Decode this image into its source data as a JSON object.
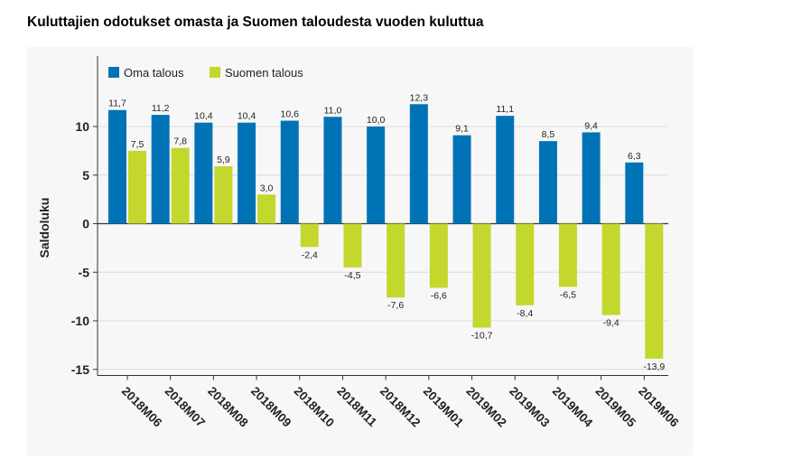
{
  "page": {
    "title": "Kuluttajien odotukset omasta ja Suomen taloudesta vuoden kuluttua"
  },
  "chart_data": {
    "type": "bar",
    "title": "Kuluttajien odotukset omasta ja Suomen taloudesta vuoden kuluttua",
    "xlabel": "",
    "ylabel": "Saldoluku",
    "ylim": [
      -16,
      17
    ],
    "yticks": [
      -15,
      -10,
      -5,
      0,
      5,
      10
    ],
    "ytick_labels": [
      "-15",
      "-10",
      "-5",
      "0",
      "5",
      "10"
    ],
    "grid": true,
    "legend_position": "top-left",
    "categories": [
      "2018M06",
      "2018M07",
      "2018M08",
      "2018M09",
      "2018M10",
      "2018M11",
      "2018M12",
      "2019M01",
      "2019M02",
      "2019M03",
      "2019M04",
      "2019M05",
      "2019M06"
    ],
    "series": [
      {
        "name": "Oma talous",
        "color": "#0073b7",
        "values": [
          11.7,
          11.2,
          10.4,
          10.4,
          10.6,
          11.0,
          10.0,
          12.3,
          9.1,
          11.1,
          8.5,
          9.4,
          6.3
        ],
        "labels": [
          "11,7",
          "11,2",
          "10,4",
          "10,4",
          "10,6",
          "11,0",
          "10,0",
          "12,3",
          "9,1",
          "11,1",
          "8,5",
          "9,4",
          "6,3"
        ]
      },
      {
        "name": "Suomen talous",
        "color": "#c3d72d",
        "values": [
          7.5,
          7.8,
          5.9,
          3.0,
          -2.4,
          -4.5,
          -7.6,
          -6.6,
          -10.7,
          -8.4,
          -6.5,
          -9.4,
          -13.9
        ],
        "labels": [
          "7,5",
          "7,8",
          "5,9",
          "3,0",
          "-2,4",
          "-4,5",
          "-7,6",
          "-6,6",
          "-10,7",
          "-8,4",
          "-6,5",
          "-9,4",
          "-13,9"
        ]
      }
    ]
  }
}
